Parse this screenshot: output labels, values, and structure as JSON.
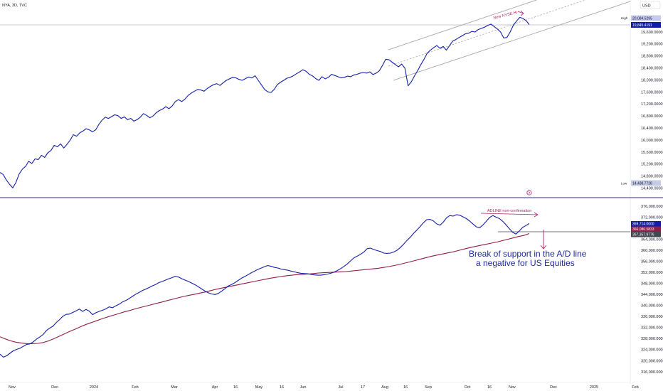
{
  "header": {
    "symbol": "NYA, 3D, TVC",
    "currency": "USD"
  },
  "main_pane": {
    "y_ticks": [
      "19,600.0000",
      "19,200.0000",
      "18,800.0000",
      "18,400.0000",
      "18,000.0000",
      "17,600.0000",
      "17,200.0000",
      "16,800.0000",
      "16,400.0000",
      "16,000.0000",
      "15,600.0000",
      "15,200.0000",
      "14,800.0000",
      "14,400.0000"
    ],
    "high_label": "High",
    "high_value": "20,084.5295",
    "last_value": "19,845.4191",
    "low_label": "Low",
    "low_value": "14,438.7728",
    "annotation": "New NYSE Hi"
  },
  "lower_pane": {
    "y_ticks": [
      "376,000.0000",
      "372,000.0000",
      "364,000.0000",
      "360,000.0000",
      "356,000.0000",
      "352,000.0000",
      "348,000.0000",
      "344,000.0000",
      "340,000.0000",
      "336,000.0000",
      "332,000.0000",
      "328,000.0000",
      "324,000.0000",
      "320,000.0000",
      "316,000.0000"
    ],
    "last_value": "369,714.0000",
    "ma_value": "366,086.5833",
    "support_value": "367,357.9776",
    "annotation_nonconfirm": "ADLINE non-confirmation",
    "annotation_break_1": "Break of support in the A/D line",
    "annotation_break_2": "a negative for US Equities"
  },
  "x_ticks": [
    "Nov",
    "Dec",
    "2024",
    "Feb",
    "Mar",
    "Apr",
    "16",
    "May",
    "16",
    "Jun",
    "Jul",
    "17",
    "Aug",
    "16",
    "Sep",
    "Oct",
    "16",
    "Nov",
    "Dec",
    "2025",
    "Feb"
  ],
  "colors": {
    "price_line": "#131ea8",
    "adline": "#131ea8",
    "ma_line": "#8e1d4a",
    "channel": "#9e9e9e",
    "annotation": "#b0206a",
    "badge_last": "#131ea8",
    "badge_light": "#c5cbe9",
    "badge_ma": "#8e1d4a",
    "badge_support": "#434651"
  },
  "chart_data": [
    {
      "type": "line",
      "x_axis": "time",
      "ylim": [
        14300,
        20300
      ],
      "series": [
        {
          "values": [
            14950,
            14880,
            14700,
            14560,
            14440,
            14620,
            14900,
            15060,
            15150,
            15320,
            15250,
            15400,
            15380,
            15520,
            15450,
            15600,
            15680,
            15850,
            15800,
            15900,
            15760,
            15880,
            16020,
            16200,
            16150,
            16260,
            16320,
            16400,
            16360,
            16300,
            16360,
            16540,
            16680,
            16780,
            16740,
            16800,
            16860,
            16830,
            16740,
            16790,
            16700,
            16740,
            16650,
            16700,
            16780,
            16900,
            16840,
            16760,
            16820,
            16930,
            17000,
            17050,
            17130,
            17060,
            17150,
            17300,
            17360,
            17300,
            17380,
            17500,
            17580,
            17640,
            17700,
            17680,
            17640,
            17730,
            17800,
            17860,
            17890,
            17830,
            17920,
            18000,
            18050,
            18100,
            18080,
            18030,
            18000,
            18060,
            18110,
            18080,
            18150,
            18000,
            17850,
            17700,
            17620,
            17600,
            17700,
            17860,
            17940,
            18000,
            18070,
            18100,
            18150,
            18220,
            18280,
            18350,
            18300,
            18200,
            18150,
            18060,
            18000,
            18120,
            18050,
            18100,
            18200,
            18160,
            18120,
            18080,
            18100,
            18140,
            18120,
            18180,
            18200,
            18240,
            18260,
            18240,
            18280,
            18190,
            18240,
            18320,
            18500,
            18700,
            18680,
            18600,
            18520,
            18450,
            18540,
            18400,
            17820,
            17950,
            18150,
            18320,
            18520,
            18700,
            18900,
            19000,
            19080,
            19150,
            19060,
            19120,
            19000,
            19150,
            19300,
            19350,
            19420,
            19480,
            19540,
            19560,
            19620,
            19600,
            19680,
            19720,
            19760,
            19820,
            19860,
            19780,
            19700,
            19600,
            19400,
            19420,
            19600,
            19820,
            19960,
            20084,
            20050,
            19980,
            19845
          ]
        }
      ]
    },
    {
      "type": "line",
      "x_axis": "time",
      "ylim": [
        315000,
        377000
      ],
      "series": [
        {
          "values": [
            322400,
            321300,
            321800,
            322700,
            323600,
            324100,
            324500,
            325200,
            325900,
            326100,
            326800,
            327800,
            328600,
            329500,
            330900,
            331800,
            332500,
            333800,
            334900,
            336100,
            336800,
            336900,
            337500,
            338100,
            338700,
            337900,
            338600,
            338000,
            336700,
            337400,
            337900,
            338300,
            338800,
            339500,
            339200,
            339900,
            340500,
            341300,
            341800,
            342500,
            343300,
            344100,
            344700,
            345400,
            345900,
            346500,
            347100,
            347600,
            348300,
            348700,
            349200,
            349700,
            350100,
            350600,
            350300,
            349700,
            349200,
            348700,
            348100,
            347500,
            346800,
            346000,
            345200,
            344600,
            344200,
            344000,
            344400,
            345200,
            346100,
            347100,
            347600,
            348300,
            349100,
            349900,
            350500,
            351200,
            351900,
            352500,
            353100,
            353600,
            354100,
            354500,
            354200,
            353800,
            353600,
            353200,
            353000,
            352800,
            352500,
            352200,
            351900,
            351700,
            351600,
            351500,
            351300,
            351100,
            351000,
            351000,
            351200,
            351400,
            351700,
            352100,
            352700,
            353400,
            354200,
            355100,
            356200,
            357300,
            357900,
            358600,
            359400,
            360600,
            360800,
            360300,
            359900,
            359600,
            359000,
            358900,
            359000,
            359400,
            360000,
            361000,
            362200,
            363600,
            364700,
            366100,
            367300,
            368600,
            370000,
            371100,
            371200,
            370700,
            369600,
            369100,
            370200,
            371800,
            372600,
            372400,
            372900,
            372700,
            372100,
            371500,
            370600,
            369500,
            368500,
            368200,
            369200,
            370500,
            371900,
            372600,
            372000,
            371500,
            370500,
            369200,
            367800,
            366500,
            365900,
            367000,
            368300,
            369000,
            369714
          ]
        },
        {
          "values": [
            328700,
            327900,
            327200,
            326700,
            326400,
            326200,
            326200,
            326300,
            326600,
            327200,
            328000,
            328900,
            329800,
            330700,
            331500,
            332400,
            333200,
            333900,
            334600,
            335300,
            335900,
            336500,
            337100,
            337700,
            338200,
            338800,
            339300,
            339800,
            340300,
            340800,
            341300,
            341800,
            342300,
            342800,
            343300,
            343700,
            344100,
            344500,
            344900,
            345400,
            345900,
            346300,
            346700,
            347100,
            347500,
            347900,
            348300,
            348700,
            349100,
            349500,
            349900,
            350200,
            350500,
            350800,
            351000,
            351200,
            351300,
            351400,
            351600,
            351800,
            351900,
            352000,
            352100,
            352200,
            352300,
            352500,
            352700,
            352900,
            353100,
            353300,
            353500,
            353800,
            354100,
            354500,
            354900,
            355400,
            355900,
            356400,
            356900,
            357400,
            357900,
            358300,
            358700,
            359100,
            359500,
            360000,
            360500,
            361000,
            361400,
            361800,
            362200,
            362600,
            363000,
            363500,
            364000,
            364500,
            365000,
            365400,
            366086
          ]
        }
      ]
    }
  ]
}
